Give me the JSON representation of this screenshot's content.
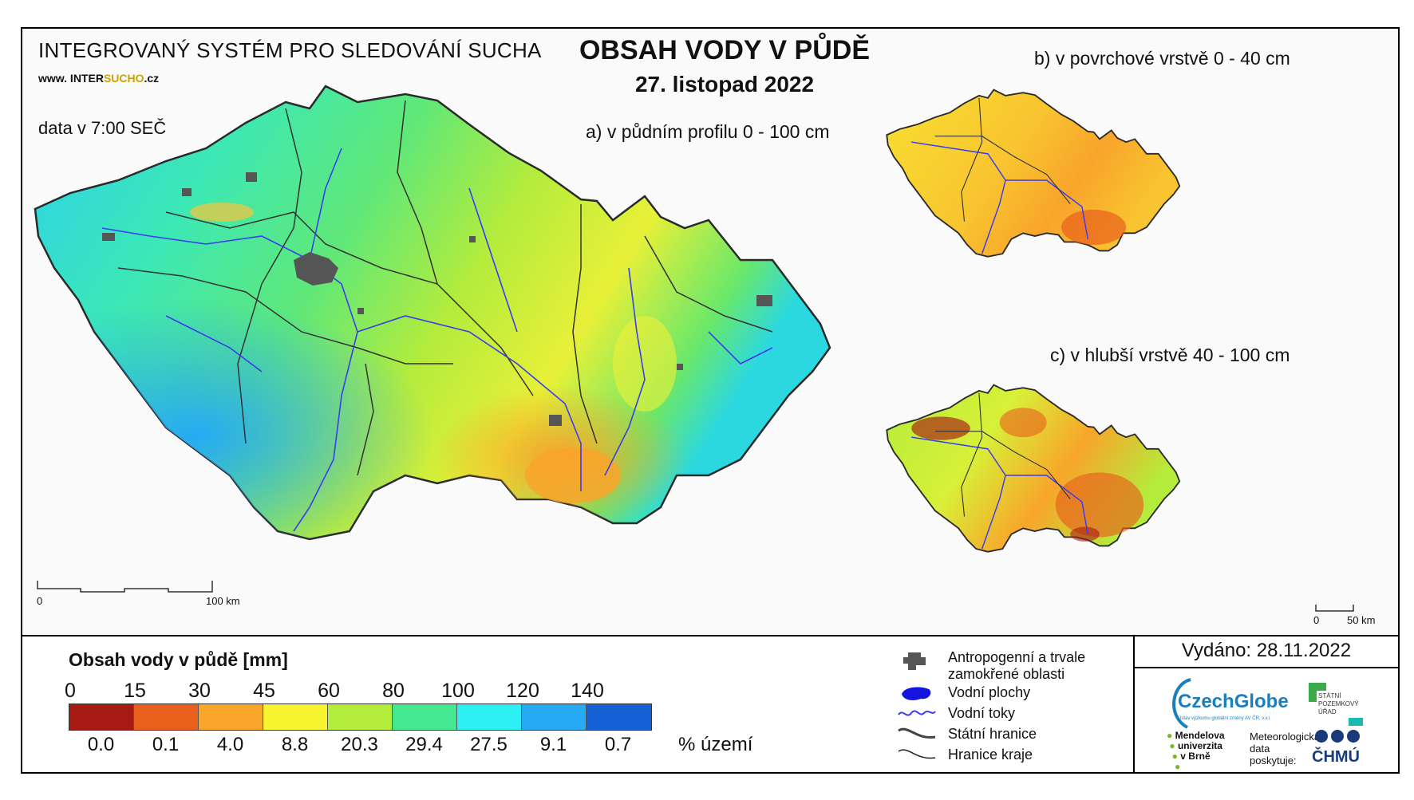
{
  "header": {
    "system_title": "INTEGROVANÝ SYSTÉM PRO SLEDOVÁNÍ SUCHA",
    "site_prefix": "www. INTER",
    "site_highlight": "SUCHO",
    "site_suffix": ".cz",
    "data_time": "data v 7:00 SEČ",
    "main_title": "OBSAH VODY V PŮDĚ",
    "date": "27. listopad 2022"
  },
  "maps": {
    "a_label": "a) v půdním profilu 0 - 100 cm",
    "b_label": "b) v povrchové vrstvě 0 - 40 cm",
    "c_label": "c) v hlubší vrstvě 40 - 100 cm",
    "main_scale": {
      "start": "0",
      "end": "100 km"
    },
    "small_scale": {
      "start": "0",
      "end": "50 km"
    }
  },
  "legend": {
    "title": "Obsah vody v půdě  [mm]",
    "thresholds": [
      "0",
      "15",
      "30",
      "45",
      "60",
      "80",
      "100",
      "120",
      "140"
    ],
    "classes": [
      {
        "color": "#a81a14",
        "pct": "0.0"
      },
      {
        "color": "#e8601c",
        "pct": "0.1"
      },
      {
        "color": "#f8a52a",
        "pct": "4.0"
      },
      {
        "color": "#f8f430",
        "pct": "8.8"
      },
      {
        "color": "#b4ec3c",
        "pct": "20.3"
      },
      {
        "color": "#44e890",
        "pct": "29.4"
      },
      {
        "color": "#2cf0f4",
        "pct": "27.5"
      },
      {
        "color": "#26aaf4",
        "pct": "9.1"
      },
      {
        "color": "#1460d4",
        "pct": "0.7"
      }
    ],
    "pct_unit": "% území"
  },
  "symbols": {
    "items": [
      {
        "icon": "urban-area-icon",
        "label_1": "Antropogenní a trvale",
        "label_2": "zamokřené oblasti"
      },
      {
        "icon": "water-body-icon",
        "label_1": "Vodní plochy"
      },
      {
        "icon": "river-icon",
        "label_1": "Vodní toky"
      },
      {
        "icon": "state-border-icon",
        "label_1": "Státní hranice"
      },
      {
        "icon": "region-border-icon",
        "label_1": "Hranice kraje"
      }
    ]
  },
  "footer": {
    "issued": "Vydáno: 28.11.2022",
    "czechglobe": "CzechGlobe",
    "czechglobe_sub": "Ústav výzkumu globální změny AV ČR, v.v.i.",
    "spu_1": "STÁTNÍ",
    "spu_2": "POZEMKOVÝ",
    "spu_3": "ÚŘAD",
    "mendel_1": "Mendelova",
    "mendel_2": "univerzita",
    "mendel_3": "v Brně",
    "meteo_1": "Meteorologická",
    "meteo_2": "data",
    "meteo_3": "poskytuje:",
    "chmu": "ČHMÚ"
  },
  "colors": {
    "map_background": "#fafafa",
    "border": "#2a2a2a",
    "river": "#3c3cf0",
    "urban": "#555555"
  }
}
